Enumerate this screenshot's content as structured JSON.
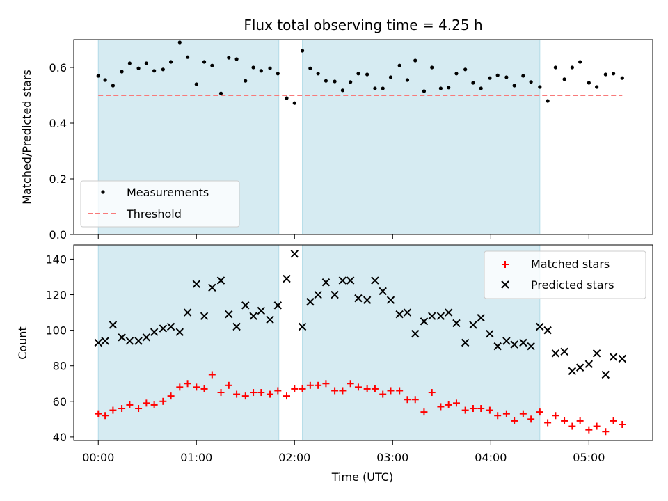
{
  "title": "Flux total observing time = 4.25 h",
  "chart_data": [
    {
      "type": "scatter",
      "ylabel": "Matched/Predicted stars",
      "xlim": [
        -0.25,
        5.65
      ],
      "ylim": [
        0,
        0.7
      ],
      "yticks": [
        0.0,
        0.2,
        0.4,
        0.6
      ],
      "ytick_labels": [
        "0.0",
        "0.2",
        "0.4",
        "0.6"
      ],
      "shaded_intervals": [
        [
          0.0,
          1.84
        ],
        [
          2.08,
          4.5
        ]
      ],
      "legend": {
        "placement": "lower-left",
        "entries": [
          {
            "label": "Measurements",
            "marker": "dot",
            "color": "#000000"
          },
          {
            "label": "Threshold",
            "marker": "dashed-line",
            "color": "#f87a7a"
          }
        ]
      },
      "series": [
        {
          "name": "Measurements",
          "x": [
            0.0,
            0.07,
            0.15,
            0.24,
            0.32,
            0.41,
            0.49,
            0.57,
            0.66,
            0.74,
            0.83,
            0.91,
            1.0,
            1.08,
            1.16,
            1.25,
            1.33,
            1.41,
            1.5,
            1.58,
            1.66,
            1.75,
            1.83,
            1.92,
            2.0,
            2.08,
            2.16,
            2.24,
            2.32,
            2.41,
            2.49,
            2.57,
            2.65,
            2.74,
            2.82,
            2.9,
            2.98,
            3.07,
            3.15,
            3.23,
            3.32,
            3.4,
            3.49,
            3.57,
            3.65,
            3.74,
            3.82,
            3.9,
            3.99,
            4.07,
            4.16,
            4.24,
            4.33,
            4.41,
            4.5,
            4.58,
            4.66,
            4.75,
            4.83,
            4.91,
            5.0,
            5.08,
            5.17,
            5.25,
            5.34
          ],
          "y": [
            0.57,
            0.555,
            0.535,
            0.585,
            0.615,
            0.597,
            0.615,
            0.588,
            0.593,
            0.62,
            0.69,
            0.637,
            0.54,
            0.62,
            0.607,
            0.507,
            0.635,
            0.63,
            0.552,
            0.6,
            0.588,
            0.597,
            0.578,
            0.49,
            0.472,
            0.66,
            0.597,
            0.578,
            0.552,
            0.55,
            0.518,
            0.548,
            0.578,
            0.575,
            0.525,
            0.525,
            0.565,
            0.607,
            0.555,
            0.625,
            0.515,
            0.6,
            0.525,
            0.528,
            0.578,
            0.593,
            0.545,
            0.525,
            0.562,
            0.572,
            0.565,
            0.535,
            0.57,
            0.548,
            0.53,
            0.48,
            0.6,
            0.558,
            0.6,
            0.62,
            0.545,
            0.53,
            0.575,
            0.578,
            0.562
          ]
        },
        {
          "name": "Threshold",
          "x": [
            0.0,
            5.34
          ],
          "y": [
            0.5,
            0.5
          ]
        }
      ]
    },
    {
      "type": "scatter",
      "xlabel": "Time (UTC)",
      "ylabel": "Count",
      "xlim": [
        -0.25,
        5.65
      ],
      "ylim": [
        38,
        148
      ],
      "xticks": [
        0,
        1,
        2,
        3,
        4,
        5
      ],
      "xtick_labels": [
        "00:00",
        "01:00",
        "02:00",
        "03:00",
        "04:00",
        "05:00"
      ],
      "yticks": [
        40,
        60,
        80,
        100,
        120,
        140
      ],
      "ytick_labels": [
        "40",
        "60",
        "80",
        "100",
        "120",
        "140"
      ],
      "shaded_intervals": [
        [
          0.0,
          1.84
        ],
        [
          2.08,
          4.5
        ]
      ],
      "legend": {
        "placement": "top-right",
        "entries": [
          {
            "label": "Matched stars",
            "marker": "plus",
            "color": "#ff0000"
          },
          {
            "label": "Predicted stars",
            "marker": "x",
            "color": "#000000"
          }
        ]
      },
      "series": [
        {
          "name": "Matched stars",
          "x": [
            0.0,
            0.07,
            0.15,
            0.24,
            0.32,
            0.41,
            0.49,
            0.57,
            0.66,
            0.74,
            0.83,
            0.91,
            1.0,
            1.08,
            1.16,
            1.25,
            1.33,
            1.41,
            1.5,
            1.58,
            1.66,
            1.75,
            1.83,
            1.92,
            2.0,
            2.08,
            2.16,
            2.24,
            2.32,
            2.41,
            2.49,
            2.57,
            2.65,
            2.74,
            2.82,
            2.9,
            2.98,
            3.07,
            3.15,
            3.23,
            3.32,
            3.4,
            3.49,
            3.57,
            3.65,
            3.74,
            3.82,
            3.9,
            3.99,
            4.07,
            4.16,
            4.24,
            4.33,
            4.41,
            4.5,
            4.58,
            4.66,
            4.75,
            4.83,
            4.91,
            5.0,
            5.08,
            5.17,
            5.25,
            5.34
          ],
          "y": [
            53,
            52,
            55,
            56,
            58,
            56,
            59,
            58,
            60,
            63,
            68,
            70,
            68,
            67,
            75,
            65,
            69,
            64,
            63,
            65,
            65,
            64,
            66,
            63,
            67,
            67,
            69,
            69,
            70,
            66,
            66,
            70,
            68,
            67,
            67,
            64,
            66,
            66,
            61,
            61,
            54,
            65,
            57,
            58,
            59,
            55,
            56,
            56,
            55,
            52,
            53,
            49,
            53,
            50,
            54,
            48,
            52,
            49,
            46,
            49,
            44,
            46,
            43,
            49,
            47
          ]
        },
        {
          "name": "Predicted stars",
          "x": [
            0.0,
            0.07,
            0.15,
            0.24,
            0.32,
            0.41,
            0.49,
            0.57,
            0.66,
            0.74,
            0.83,
            0.91,
            1.0,
            1.08,
            1.16,
            1.25,
            1.33,
            1.41,
            1.5,
            1.58,
            1.66,
            1.75,
            1.83,
            1.92,
            2.0,
            2.08,
            2.16,
            2.24,
            2.32,
            2.41,
            2.49,
            2.57,
            2.65,
            2.74,
            2.82,
            2.9,
            2.98,
            3.07,
            3.15,
            3.23,
            3.32,
            3.4,
            3.49,
            3.57,
            3.65,
            3.74,
            3.82,
            3.9,
            3.99,
            4.07,
            4.16,
            4.24,
            4.33,
            4.41,
            4.5,
            4.58,
            4.66,
            4.75,
            4.83,
            4.91,
            5.0,
            5.08,
            5.17,
            5.25,
            5.34
          ],
          "y": [
            93,
            94,
            103,
            96,
            94,
            94,
            96,
            99,
            101,
            102,
            99,
            110,
            126,
            108,
            124,
            128,
            109,
            102,
            114,
            108,
            111,
            106,
            114,
            129,
            143,
            102,
            116,
            120,
            127,
            120,
            128,
            128,
            118,
            117,
            128,
            122,
            117,
            109,
            110,
            98,
            105,
            108,
            108,
            110,
            104,
            93,
            103,
            107,
            98,
            91,
            94,
            92,
            93,
            91,
            102,
            100,
            87,
            88,
            77,
            79,
            81,
            87,
            75,
            85,
            84
          ]
        }
      ]
    }
  ]
}
